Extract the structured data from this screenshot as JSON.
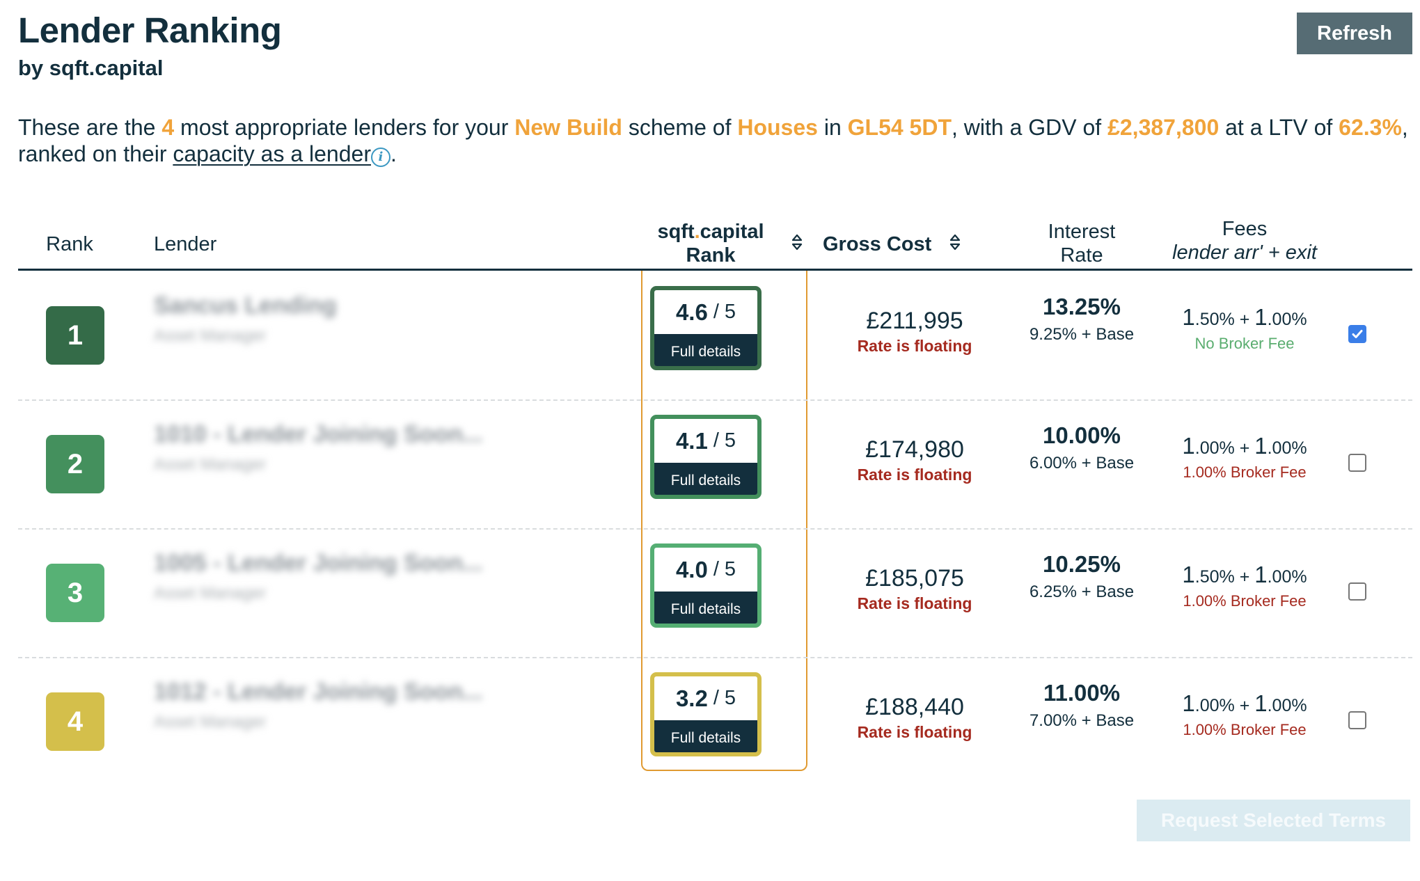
{
  "header": {
    "title": "Lender Ranking",
    "subtitle": "by sqft.capital",
    "refresh_label": "Refresh"
  },
  "intro": {
    "t1": "These are the ",
    "count": "4",
    "t2": " most appropriate lenders for your ",
    "scheme_type": "New Build",
    "t3": " scheme of ",
    "property_type": "Houses",
    "t4": " in ",
    "postcode": "GL54 5DT",
    "t5": ", with a GDV of ",
    "gdv": "£2,387,800",
    "t6": " at a LTV of ",
    "ltv": "62.3%",
    "t7": ", ranked on their ",
    "link_text": "capacity as a lender",
    "info_icon": "i",
    "t8": "."
  },
  "table": {
    "headers": {
      "rank": "Rank",
      "lender": "Lender",
      "sqft_rank_a": "sqft",
      "sqft_rank_dot": ".",
      "sqft_rank_b": "capital",
      "sqft_rank_c": "Rank",
      "gross_cost": "Gross Cost",
      "interest_a": "Interest",
      "interest_b": "Rate",
      "fees_a": "Fees",
      "fees_b": "lender arr' + exit"
    },
    "score_suffix": "/ 5",
    "full_details_label": "Full details",
    "rate_floating_label": "Rate is floating",
    "rows": [
      {
        "rank": "1",
        "badge_color": "#346b48",
        "lender_name": "Sancus Lending",
        "lender_type": "Asset Manager",
        "score": "4.6",
        "score_border": "#3a6e4a",
        "gross_cost": "£211,995",
        "rate_floating": "Rate is floating",
        "interest_rate": "13.25%",
        "interest_detail": "9.25% + Base",
        "fee_arr_int": "1",
        "fee_arr_dec": ".50%",
        "fee_exit_int": "1",
        "fee_exit_dec": ".00%",
        "broker_fee": "No Broker Fee",
        "broker_fee_type": "none",
        "selected": true
      },
      {
        "rank": "2",
        "badge_color": "#44905d",
        "lender_name": "1010 - Lender Joining Soon...",
        "lender_type": "Asset Manager",
        "score": "4.1",
        "score_border": "#43905c",
        "gross_cost": "£174,980",
        "rate_floating": "Rate is floating",
        "interest_rate": "10.00%",
        "interest_detail": "6.00% + Base",
        "fee_arr_int": "1",
        "fee_arr_dec": ".00%",
        "fee_exit_int": "1",
        "fee_exit_dec": ".00%",
        "broker_fee": "1.00% Broker Fee",
        "broker_fee_type": "fee",
        "selected": false
      },
      {
        "rank": "3",
        "badge_color": "#57b175",
        "lender_name": "1005 - Lender Joining Soon...",
        "lender_type": "Asset Manager",
        "score": "4.0",
        "score_border": "#55ae73",
        "gross_cost": "£185,075",
        "rate_floating": "Rate is floating",
        "interest_rate": "10.25%",
        "interest_detail": "6.25% + Base",
        "fee_arr_int": "1",
        "fee_arr_dec": ".50%",
        "fee_exit_int": "1",
        "fee_exit_dec": ".00%",
        "broker_fee": "1.00% Broker Fee",
        "broker_fee_type": "fee",
        "selected": false
      },
      {
        "rank": "4",
        "badge_color": "#d4bf4b",
        "lender_name": "1012 - Lender Joining Soon...",
        "lender_type": "Asset Manager",
        "score": "3.2",
        "score_border": "#d4bf4b",
        "gross_cost": "£188,440",
        "rate_floating": "Rate is floating",
        "interest_rate": "11.00%",
        "interest_detail": "7.00% + Base",
        "fee_arr_int": "1",
        "fee_arr_dec": ".00%",
        "fee_exit_int": "1",
        "fee_exit_dec": ".00%",
        "broker_fee": "1.00% Broker Fee",
        "broker_fee_type": "fee",
        "selected": false
      }
    ]
  },
  "footer": {
    "request_label": "Request Selected Terms"
  },
  "colors": {
    "primary": "#132f3d",
    "accent": "#f0a33a",
    "column_highlight": "#e09a31",
    "floating_red": "#a52a1f",
    "no_fee_green": "#5aad6f",
    "checkbox_blue": "#3a7ee8",
    "info_blue": "#3b98c2",
    "refresh_bg": "#566c74",
    "request_disabled_bg": "#dbebf1"
  }
}
